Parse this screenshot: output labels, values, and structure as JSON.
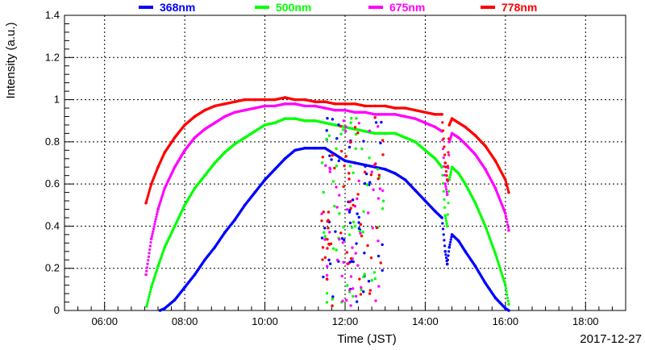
{
  "chart_data": {
    "type": "scatter",
    "title": "",
    "xlabel": "Time (JST)",
    "ylabel": "Intensity (a.u.)",
    "date_label": "2017-12-27",
    "xlim": [
      "05:00",
      "19:00"
    ],
    "ylim": [
      0,
      1.4
    ],
    "grid": true,
    "legend_position": "top",
    "x_ticks": [
      "06:00",
      "08:00",
      "10:00",
      "12:00",
      "14:00",
      "16:00",
      "18:00"
    ],
    "y_ticks": [
      "0",
      "0.2",
      "0.4",
      "0.6",
      "0.8",
      "1",
      "1.2",
      "1.4"
    ],
    "series": [
      {
        "name": "368nm",
        "color": "#0000ff",
        "points": [
          [
            "07:23",
            0.0
          ],
          [
            "07:30",
            0.01
          ],
          [
            "07:45",
            0.05
          ],
          [
            "08:00",
            0.11
          ],
          [
            "08:15",
            0.17
          ],
          [
            "08:30",
            0.24
          ],
          [
            "08:45",
            0.3
          ],
          [
            "09:00",
            0.37
          ],
          [
            "09:15",
            0.43
          ],
          [
            "09:30",
            0.5
          ],
          [
            "09:45",
            0.56
          ],
          [
            "10:00",
            0.62
          ],
          [
            "10:15",
            0.67
          ],
          [
            "10:30",
            0.72
          ],
          [
            "10:45",
            0.76
          ],
          [
            "11:00",
            0.77
          ],
          [
            "11:15",
            0.77
          ],
          [
            "11:30",
            0.77
          ],
          [
            "11:45",
            0.74
          ],
          [
            "12:00",
            0.71
          ],
          [
            "12:15",
            0.7
          ],
          [
            "12:30",
            0.69
          ],
          [
            "12:45",
            0.68
          ],
          [
            "13:00",
            0.67
          ],
          [
            "13:15",
            0.65
          ],
          [
            "13:30",
            0.62
          ],
          [
            "13:45",
            0.57
          ],
          [
            "14:00",
            0.52
          ],
          [
            "14:15",
            0.47
          ],
          [
            "14:25",
            0.44
          ],
          [
            "14:30",
            0.28
          ],
          [
            "14:33",
            0.22
          ],
          [
            "14:36",
            0.3
          ],
          [
            "14:40",
            0.36
          ],
          [
            "14:50",
            0.33
          ],
          [
            "15:00",
            0.28
          ],
          [
            "15:15",
            0.21
          ],
          [
            "15:30",
            0.13
          ],
          [
            "15:45",
            0.06
          ],
          [
            "16:00",
            0.01
          ],
          [
            "16:05",
            0.0
          ]
        ]
      },
      {
        "name": "500nm",
        "color": "#00ff00",
        "points": [
          [
            "07:03",
            0.02
          ],
          [
            "07:10",
            0.11
          ],
          [
            "07:20",
            0.21
          ],
          [
            "07:30",
            0.3
          ],
          [
            "07:45",
            0.4
          ],
          [
            "08:00",
            0.5
          ],
          [
            "08:15",
            0.58
          ],
          [
            "08:30",
            0.64
          ],
          [
            "08:45",
            0.7
          ],
          [
            "09:00",
            0.75
          ],
          [
            "09:15",
            0.79
          ],
          [
            "09:30",
            0.82
          ],
          [
            "09:45",
            0.85
          ],
          [
            "10:00",
            0.88
          ],
          [
            "10:15",
            0.89
          ],
          [
            "10:30",
            0.91
          ],
          [
            "10:45",
            0.91
          ],
          [
            "11:00",
            0.9
          ],
          [
            "11:15",
            0.9
          ],
          [
            "11:30",
            0.89
          ],
          [
            "11:45",
            0.88
          ],
          [
            "12:00",
            0.87
          ],
          [
            "12:15",
            0.86
          ],
          [
            "12:30",
            0.85
          ],
          [
            "12:45",
            0.84
          ],
          [
            "13:00",
            0.84
          ],
          [
            "13:15",
            0.84
          ],
          [
            "13:30",
            0.82
          ],
          [
            "13:45",
            0.8
          ],
          [
            "14:00",
            0.76
          ],
          [
            "14:15",
            0.72
          ],
          [
            "14:25",
            0.68
          ],
          [
            "14:30",
            0.45
          ],
          [
            "14:33",
            0.4
          ],
          [
            "14:36",
            0.62
          ],
          [
            "14:40",
            0.68
          ],
          [
            "14:50",
            0.65
          ],
          [
            "15:00",
            0.6
          ],
          [
            "15:15",
            0.51
          ],
          [
            "15:30",
            0.4
          ],
          [
            "15:45",
            0.27
          ],
          [
            "16:00",
            0.12
          ],
          [
            "16:05",
            0.03
          ]
        ]
      },
      {
        "name": "675nm",
        "color": "#ff00ff",
        "points": [
          [
            "07:02",
            0.17
          ],
          [
            "07:10",
            0.34
          ],
          [
            "07:20",
            0.48
          ],
          [
            "07:30",
            0.58
          ],
          [
            "07:45",
            0.68
          ],
          [
            "08:00",
            0.76
          ],
          [
            "08:15",
            0.82
          ],
          [
            "08:30",
            0.86
          ],
          [
            "08:45",
            0.89
          ],
          [
            "09:00",
            0.92
          ],
          [
            "09:15",
            0.94
          ],
          [
            "09:30",
            0.95
          ],
          [
            "09:45",
            0.96
          ],
          [
            "10:00",
            0.97
          ],
          [
            "10:15",
            0.97
          ],
          [
            "10:30",
            0.98
          ],
          [
            "10:45",
            0.98
          ],
          [
            "11:00",
            0.97
          ],
          [
            "11:15",
            0.97
          ],
          [
            "11:30",
            0.96
          ],
          [
            "11:45",
            0.95
          ],
          [
            "12:00",
            0.95
          ],
          [
            "12:15",
            0.94
          ],
          [
            "12:30",
            0.94
          ],
          [
            "12:45",
            0.93
          ],
          [
            "13:00",
            0.93
          ],
          [
            "13:15",
            0.93
          ],
          [
            "13:30",
            0.92
          ],
          [
            "13:45",
            0.91
          ],
          [
            "14:00",
            0.89
          ],
          [
            "14:15",
            0.87
          ],
          [
            "14:25",
            0.85
          ],
          [
            "14:30",
            0.6
          ],
          [
            "14:33",
            0.55
          ],
          [
            "14:36",
            0.8
          ],
          [
            "14:40",
            0.84
          ],
          [
            "14:50",
            0.82
          ],
          [
            "15:00",
            0.79
          ],
          [
            "15:15",
            0.74
          ],
          [
            "15:30",
            0.67
          ],
          [
            "15:45",
            0.58
          ],
          [
            "16:00",
            0.46
          ],
          [
            "16:05",
            0.38
          ]
        ]
      },
      {
        "name": "778nm",
        "color": "#ff0000",
        "points": [
          [
            "07:02",
            0.51
          ],
          [
            "07:10",
            0.6
          ],
          [
            "07:20",
            0.68
          ],
          [
            "07:30",
            0.75
          ],
          [
            "07:45",
            0.82
          ],
          [
            "08:00",
            0.88
          ],
          [
            "08:15",
            0.92
          ],
          [
            "08:30",
            0.95
          ],
          [
            "08:45",
            0.97
          ],
          [
            "09:00",
            0.98
          ],
          [
            "09:15",
            0.99
          ],
          [
            "09:30",
            1.0
          ],
          [
            "09:45",
            1.0
          ],
          [
            "10:00",
            1.0
          ],
          [
            "10:15",
            1.0
          ],
          [
            "10:30",
            1.01
          ],
          [
            "10:45",
            1.0
          ],
          [
            "11:00",
            1.0
          ],
          [
            "11:15",
            0.99
          ],
          [
            "11:30",
            0.99
          ],
          [
            "11:45",
            0.98
          ],
          [
            "12:00",
            0.98
          ],
          [
            "12:15",
            0.98
          ],
          [
            "12:30",
            0.97
          ],
          [
            "12:45",
            0.97
          ],
          [
            "13:00",
            0.97
          ],
          [
            "13:15",
            0.96
          ],
          [
            "13:30",
            0.96
          ],
          [
            "13:45",
            0.95
          ],
          [
            "14:00",
            0.94
          ],
          [
            "14:15",
            0.93
          ],
          [
            "14:25",
            0.93
          ],
          [
            "14:30",
            0.7
          ],
          [
            "14:33",
            0.62
          ],
          [
            "14:36",
            0.88
          ],
          [
            "14:40",
            0.91
          ],
          [
            "14:50",
            0.89
          ],
          [
            "15:00",
            0.87
          ],
          [
            "15:15",
            0.83
          ],
          [
            "15:30",
            0.78
          ],
          [
            "15:45",
            0.71
          ],
          [
            "16:00",
            0.62
          ],
          [
            "16:05",
            0.56
          ]
        ]
      }
    ],
    "annotations": [
      "scattered points between ~11:25 and ~13:00 (clouds), values 0.02–0.97"
    ]
  }
}
